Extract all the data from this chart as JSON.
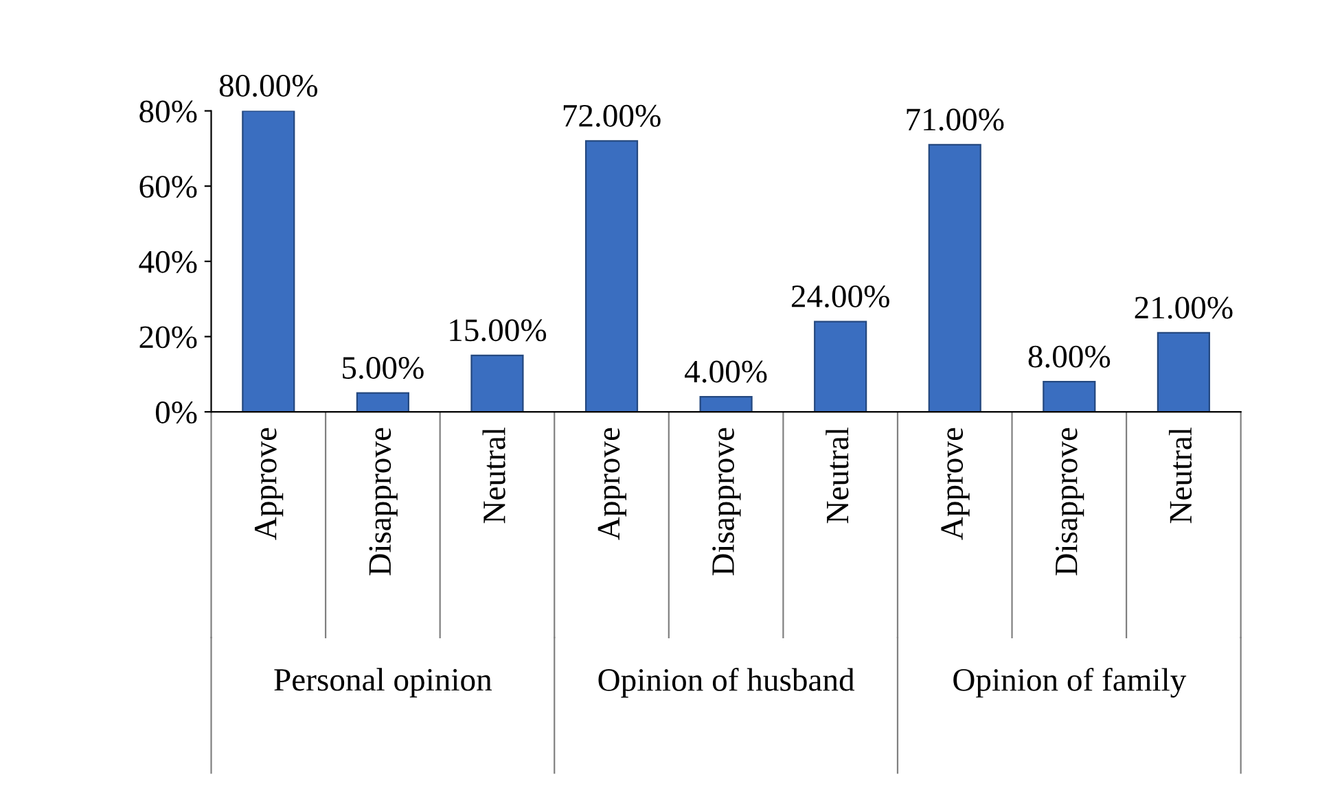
{
  "chart_data": {
    "type": "bar",
    "categories": [
      "Approve",
      "Disapprove",
      "Neutral",
      "Approve",
      "Disapprove",
      "Neutral",
      "Approve",
      "Disapprove",
      "Neutral"
    ],
    "values": [
      80,
      5,
      15,
      72,
      4,
      24,
      71,
      8,
      21
    ],
    "value_labels": [
      "80.00%",
      "5.00%",
      "15.00%",
      "72.00%",
      "4.00%",
      "24.00%",
      "71.00%",
      "8.00%",
      "21.00%"
    ],
    "color": "#3a6ec0",
    "ylim": [
      0,
      80
    ],
    "yticks": [
      {
        "value": 0,
        "label": "0%"
      },
      {
        "value": 20,
        "label": "20%"
      },
      {
        "value": 40,
        "label": "40%"
      },
      {
        "value": 60,
        "label": "60%"
      },
      {
        "value": 80,
        "label": "80%"
      }
    ],
    "annotations": [
      "Personal opinion",
      "Opinion of husband",
      "Opinion of family"
    ],
    "grid": false
  }
}
